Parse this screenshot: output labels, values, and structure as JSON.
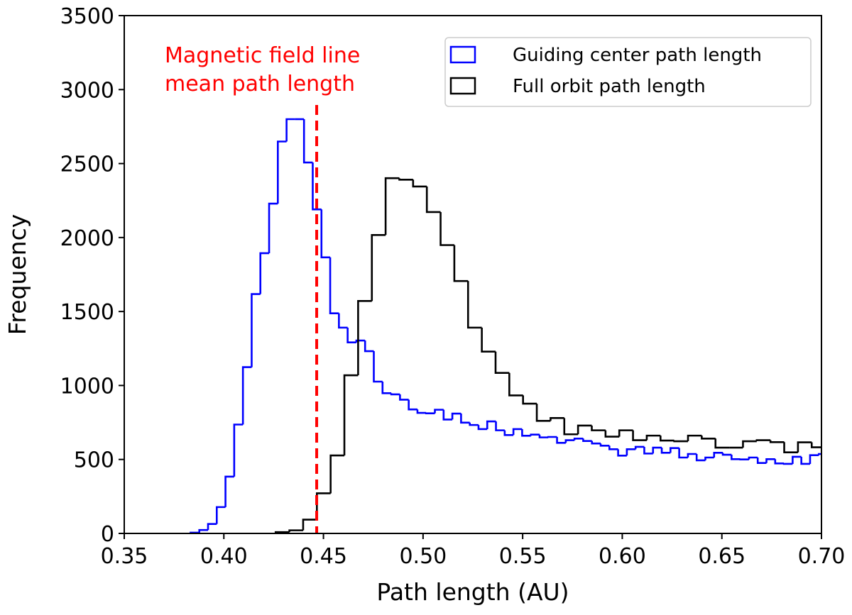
{
  "chart_data": {
    "type": "histogram-step",
    "xlabel": "Path length (AU)",
    "ylabel": "Frequency",
    "xlim": [
      0.35,
      0.7
    ],
    "ylim": [
      0,
      3500
    ],
    "xticks": [
      "0.35",
      "0.40",
      "0.45",
      "0.50",
      "0.55",
      "0.60",
      "0.65",
      "0.70"
    ],
    "yticks": [
      "0",
      "500",
      "1000",
      "1500",
      "2000",
      "2500",
      "3000",
      "3500"
    ],
    "grid": false,
    "legend_placement": "top-right",
    "series": [
      {
        "name": "Guiding center path length",
        "color": "#0000ff",
        "bin_start": 0.3833,
        "bin_width": 0.00438,
        "values": [
          5,
          23,
          64,
          178,
          384,
          736,
          1124,
          1618,
          1894,
          2229,
          2649,
          2800,
          2800,
          2507,
          2190,
          1866,
          1488,
          1391,
          1291,
          1304,
          1232,
          1026,
          948,
          940,
          904,
          838,
          815,
          812,
          836,
          770,
          810,
          749,
          733,
          705,
          757,
          697,
          665,
          705,
          660,
          668,
          649,
          652,
          612,
          630,
          641,
          625,
          608,
          593,
          569,
          526,
          569,
          585,
          540,
          580,
          545,
          577,
          513,
          537,
          494,
          513,
          545,
          532,
          502,
          500,
          513,
          476,
          502,
          473,
          470,
          518,
          470,
          529,
          537
        ]
      },
      {
        "name": "Full orbit path length",
        "color": "#000000",
        "bin_start": 0.426,
        "bin_width": 0.0069,
        "values": [
          9,
          21,
          93,
          271,
          527,
          1069,
          1571,
          2017,
          2401,
          2391,
          2345,
          2172,
          1949,
          1706,
          1391,
          1229,
          1085,
          933,
          877,
          761,
          780,
          670,
          729,
          697,
          654,
          697,
          630,
          661,
          628,
          623,
          661,
          641,
          580,
          580,
          623,
          630,
          617,
          548,
          616,
          582
        ]
      }
    ],
    "annotation": {
      "lines": [
        "Magnetic field line",
        "mean path length"
      ],
      "color": "#ff0000",
      "x_value": 0.4466,
      "style": "dashed vertical line"
    }
  }
}
